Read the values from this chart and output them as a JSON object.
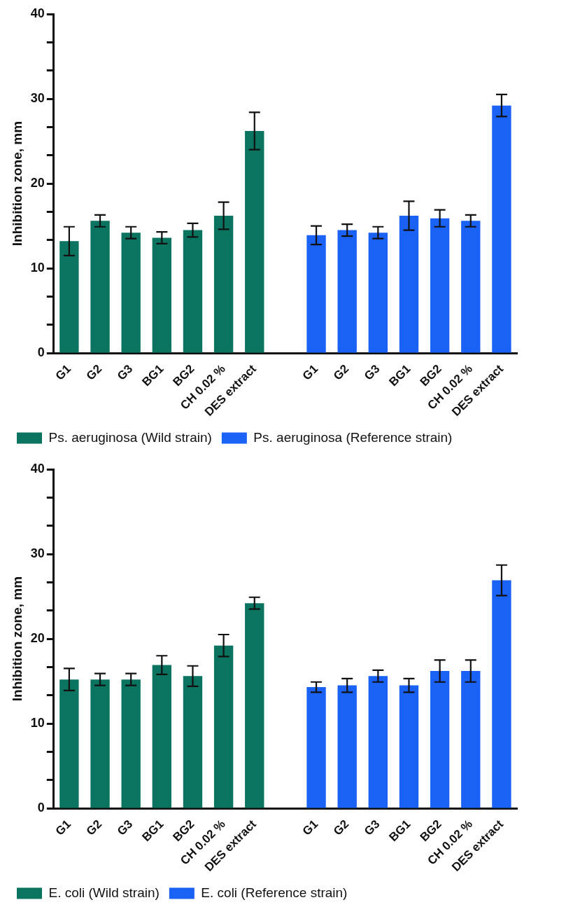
{
  "chart_data": [
    {
      "type": "bar",
      "ylabel": "Inhibition zone, mm",
      "categories": [
        "G1",
        "G2",
        "G3",
        "BG1",
        "BG2",
        "CH 0.02 %",
        "DES extract",
        null,
        "G1",
        "G2",
        "G3",
        "BG1",
        "BG2",
        "CH 0.02 %",
        "DES extract"
      ],
      "series": [
        {
          "name": "Ps. aeruginosa (Wild strain)",
          "color": "#0b7461",
          "values": [
            13.2,
            15.6,
            14.2,
            13.6,
            14.5,
            16.2,
            26.2,
            null,
            null,
            null,
            null,
            null,
            null,
            null,
            null
          ],
          "errors": [
            1.7,
            0.7,
            0.7,
            0.7,
            0.8,
            1.6,
            2.2,
            null,
            null,
            null,
            null,
            null,
            null,
            null,
            null
          ]
        },
        {
          "name": "Ps. aeruginosa (Reference strain)",
          "color": "#1a62f5",
          "values": [
            null,
            null,
            null,
            null,
            null,
            null,
            null,
            null,
            13.9,
            14.5,
            14.2,
            16.2,
            15.9,
            15.6,
            29.2
          ],
          "errors": [
            null,
            null,
            null,
            null,
            null,
            null,
            null,
            null,
            1.1,
            0.7,
            0.7,
            1.7,
            1.0,
            0.7,
            1.3
          ]
        }
      ],
      "ylim": [
        0,
        40
      ],
      "yticks": [
        0,
        {
          "value": 3.33,
          "label": null
        },
        {
          "value": 6.67,
          "label": null
        },
        10,
        {
          "value": 13.33,
          "label": null
        },
        {
          "value": 16.67,
          "label": null
        },
        20,
        {
          "value": 23.33,
          "label": null
        },
        {
          "value": 26.67,
          "label": null
        },
        30,
        {
          "value": 33.33,
          "label": null
        },
        {
          "value": 36.67,
          "label": null
        },
        40
      ],
      "grid": false,
      "legend": "bottom"
    },
    {
      "type": "bar",
      "ylabel": "Inhibition zone, mm",
      "categories": [
        "G1",
        "G2",
        "G3",
        "BG1",
        "BG2",
        "CH 0.02 %",
        "DES extract",
        null,
        "G1",
        "G2",
        "G3",
        "BG1",
        "BG2",
        "CH 0.02 %",
        "DES extract"
      ],
      "series": [
        {
          "name": "E. coli (Wild strain)",
          "color": "#0b7461",
          "values": [
            15.2,
            15.2,
            15.2,
            16.9,
            15.6,
            19.2,
            24.2,
            null,
            null,
            null,
            null,
            null,
            null,
            null,
            null
          ],
          "errors": [
            1.3,
            0.7,
            0.7,
            1.1,
            1.2,
            1.3,
            0.7,
            null,
            null,
            null,
            null,
            null,
            null,
            null,
            null
          ]
        },
        {
          "name": "E. coli (Reference strain)",
          "color": "#1a62f5",
          "values": [
            null,
            null,
            null,
            null,
            null,
            null,
            null,
            null,
            14.3,
            14.5,
            15.6,
            14.5,
            16.2,
            16.2,
            26.9
          ],
          "errors": [
            null,
            null,
            null,
            null,
            null,
            null,
            null,
            null,
            0.6,
            0.8,
            0.7,
            0.8,
            1.3,
            1.3,
            1.8
          ]
        }
      ],
      "ylim": [
        0,
        40
      ],
      "yticks": [
        0,
        {
          "value": 3.33,
          "label": null
        },
        {
          "value": 6.67,
          "label": null
        },
        10,
        {
          "value": 13.33,
          "label": null
        },
        {
          "value": 16.67,
          "label": null
        },
        20,
        {
          "value": 23.33,
          "label": null
        },
        {
          "value": 26.67,
          "label": null
        },
        30,
        {
          "value": 33.33,
          "label": null
        },
        {
          "value": 36.67,
          "label": null
        },
        40
      ],
      "grid": false,
      "legend": "bottom"
    }
  ]
}
